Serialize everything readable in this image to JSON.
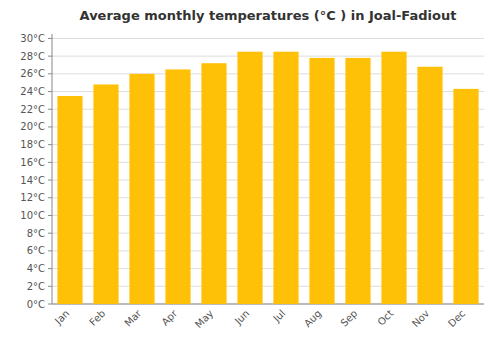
{
  "chart_data": {
    "type": "bar",
    "title": "Average monthly temperatures (°C ) in Joal-Fadiout",
    "categories": [
      "Jan",
      "Feb",
      "Mar",
      "Apr",
      "May",
      "Jun",
      "Jul",
      "Aug",
      "Sep",
      "Oct",
      "Nov",
      "Dec"
    ],
    "values": [
      23.5,
      24.8,
      26.0,
      26.5,
      27.2,
      28.5,
      28.5,
      27.8,
      27.8,
      28.5,
      26.8,
      24.3
    ],
    "color": "#FFC107",
    "ylim": [
      0,
      30.5
    ],
    "yticks": [
      {
        "value": 0,
        "label": "0°C"
      },
      {
        "value": 2,
        "label": "2°C"
      },
      {
        "value": 4,
        "label": "4°C"
      },
      {
        "value": 6,
        "label": "6°C"
      },
      {
        "value": 8,
        "label": "8°C"
      },
      {
        "value": 10,
        "label": "10°C"
      },
      {
        "value": 12,
        "label": "12°C"
      },
      {
        "value": 14,
        "label": "14°C"
      },
      {
        "value": 16,
        "label": "16°C"
      },
      {
        "value": 18,
        "label": "18°C"
      },
      {
        "value": 20,
        "label": "20°C"
      },
      {
        "value": 22,
        "label": "22°C"
      },
      {
        "value": 24,
        "label": "24°C"
      },
      {
        "value": 26,
        "label": "26°C"
      },
      {
        "value": 28,
        "label": "28°C"
      },
      {
        "value": 30,
        "label": "30°C"
      }
    ],
    "grid": true
  }
}
